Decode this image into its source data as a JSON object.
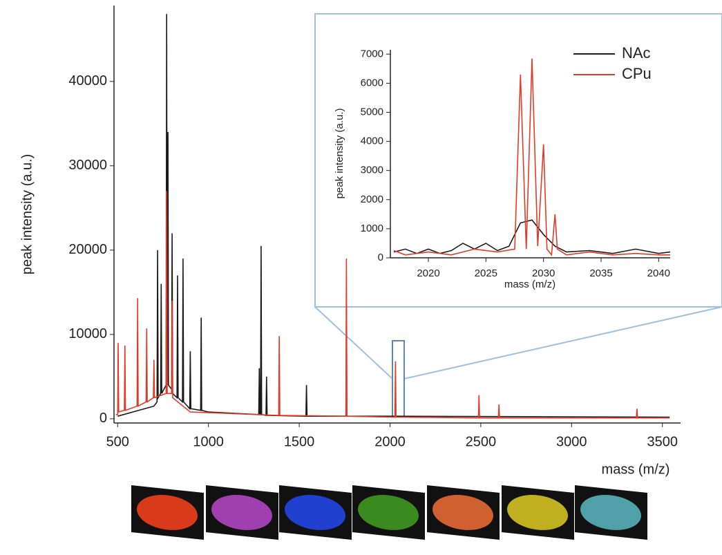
{
  "chart_data": [
    {
      "type": "line",
      "xlabel": "mass (m/z)",
      "ylabel": "peak intensity (a.u.)",
      "xlim": [
        480,
        3600
      ],
      "ylim": [
        -500,
        49000
      ],
      "xticks": [
        500,
        1000,
        1500,
        2000,
        2500,
        3000,
        3500
      ],
      "yticks": [
        0,
        10000,
        20000,
        30000,
        40000
      ],
      "series": [
        {
          "name": "NAc",
          "color": "#1a1a1a",
          "x": [
            500,
            700,
            717,
            720,
            723,
            737,
            740,
            743,
            767,
            770,
            773,
            777,
            780,
            797,
            800,
            803,
            827,
            830,
            833,
            857,
            860,
            863,
            897,
            900,
            903,
            957,
            960,
            963,
            1000,
            1277,
            1280,
            1283,
            1287,
            1290,
            1293,
            1317,
            1320,
            1323,
            1537,
            1540,
            1543,
            2000,
            3540
          ],
          "values": [
            300,
            1500,
            2000,
            20000,
            2500,
            3000,
            16000,
            3000,
            4000,
            48000,
            4000,
            34000,
            4000,
            3500,
            22000,
            3000,
            2500,
            17000,
            2500,
            2000,
            19000,
            2000,
            1200,
            8000,
            1200,
            1000,
            12000,
            1000,
            800,
            500,
            6000,
            500,
            500,
            20500,
            500,
            400,
            5000,
            400,
            300,
            4000,
            300,
            300,
            200
          ]
        },
        {
          "name": "CPu",
          "color": "#e03a2a",
          "x": [
            490,
            500,
            503,
            506,
            537,
            540,
            543,
            607,
            610,
            613,
            657,
            660,
            663,
            697,
            700,
            703,
            767,
            770,
            773,
            797,
            800,
            803,
            900,
            1387,
            1390,
            1393,
            1757,
            1760,
            1763,
            2027,
            2030,
            2033,
            2487,
            2490,
            2493,
            2597,
            2600,
            2603,
            3357,
            3360,
            3363,
            3540
          ],
          "values": [
            500,
            500,
            9000,
            800,
            1000,
            8700,
            1000,
            1500,
            14300,
            1500,
            2000,
            10700,
            2000,
            2500,
            7000,
            2500,
            3000,
            27000,
            3000,
            3000,
            14000,
            2500,
            800,
            400,
            9800,
            400,
            300,
            19000,
            300,
            200,
            6800,
            200,
            100,
            2800,
            100,
            100,
            1700,
            100,
            100,
            1200,
            100,
            100
          ]
        }
      ]
    },
    {
      "type": "line",
      "xlabel": "mass (m/z)",
      "ylabel": "peak intensity (a.u.)",
      "xlim": [
        2016.7,
        2041
      ],
      "ylim": [
        0,
        7150
      ],
      "xticks": [
        2020,
        2025,
        2030,
        2035,
        2040
      ],
      "yticks": [
        0,
        1000,
        2000,
        3000,
        4000,
        5000,
        6000,
        7000
      ],
      "legend": "top-right",
      "series": [
        {
          "name": "NAc",
          "color": "#1a1a1a",
          "x": [
            2017,
            2018,
            2019,
            2020,
            2021,
            2022,
            2023,
            2024,
            2025,
            2026,
            2027,
            2028,
            2029,
            2030,
            2031,
            2032,
            2034,
            2036,
            2038,
            2040,
            2041
          ],
          "values": [
            200,
            300,
            150,
            300,
            150,
            250,
            500,
            300,
            500,
            250,
            400,
            1200,
            1300,
            800,
            400,
            200,
            250,
            150,
            300,
            150,
            200
          ]
        },
        {
          "name": "CPu",
          "color": "#e03a2a",
          "x": [
            2017,
            2018,
            2020,
            2022,
            2024,
            2026,
            2027.5,
            2028,
            2028.5,
            2029,
            2029.5,
            2030,
            2030.3,
            2030.7,
            2031,
            2031.2,
            2031.6,
            2032,
            2034,
            2036,
            2038,
            2040,
            2041
          ],
          "values": [
            250,
            100,
            200,
            100,
            300,
            200,
            300,
            6300,
            300,
            6850,
            400,
            3900,
            300,
            100,
            1500,
            300,
            200,
            100,
            200,
            100,
            150,
            100,
            100
          ]
        }
      ]
    }
  ]
}
